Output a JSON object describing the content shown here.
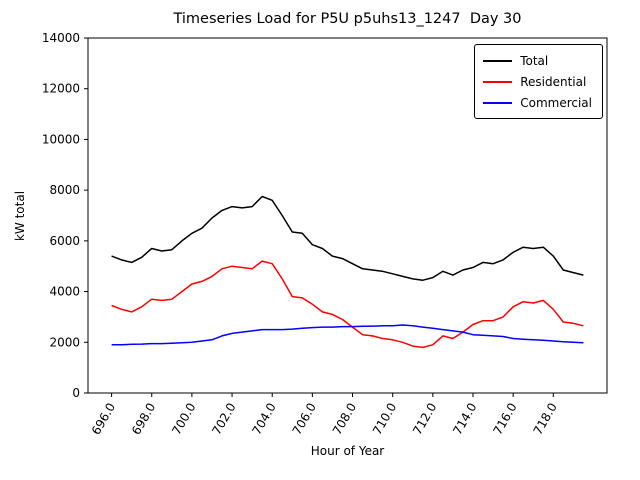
{
  "chart_data": {
    "type": "line",
    "title": "Timeseries Load for P5U p5uhs13_1247  Day 30",
    "xlabel": "Hour of Year",
    "ylabel": "kW total",
    "xlim": [
      694.825,
      720.675
    ],
    "ylim": [
      0,
      14000
    ],
    "xticks": [
      696,
      698,
      700,
      702,
      704,
      706,
      708,
      710,
      712,
      714,
      716,
      718
    ],
    "xtick_labels": [
      "696.0",
      "698.0",
      "700.0",
      "702.0",
      "704.0",
      "706.0",
      "708.0",
      "710.0",
      "712.0",
      "714.0",
      "716.0",
      "718.0"
    ],
    "yticks": [
      0,
      2000,
      4000,
      6000,
      8000,
      10000,
      12000,
      14000
    ],
    "grid": false,
    "legend_position": "upper right",
    "x": [
      696.0,
      696.5,
      697.0,
      697.5,
      698.0,
      698.5,
      699.0,
      699.5,
      700.0,
      700.5,
      701.0,
      701.5,
      702.0,
      702.5,
      703.0,
      703.5,
      704.0,
      704.5,
      705.0,
      705.5,
      706.0,
      706.5,
      707.0,
      707.5,
      708.0,
      708.5,
      709.0,
      709.5,
      710.0,
      710.5,
      711.0,
      711.5,
      712.0,
      712.5,
      713.0,
      713.5,
      714.0,
      714.5,
      715.0,
      715.5,
      716.0,
      716.5,
      717.0,
      717.5,
      718.0,
      718.5,
      719.0,
      719.5
    ],
    "series": [
      {
        "name": "Total",
        "color": "#000000",
        "values": [
          5400,
          5250,
          5150,
          5350,
          5700,
          5600,
          5650,
          6000,
          6300,
          6500,
          6900,
          7200,
          7350,
          7300,
          7350,
          7750,
          7600,
          7000,
          6350,
          6300,
          5850,
          5700,
          5400,
          5300,
          5100,
          4900,
          4850,
          4800,
          4700,
          4600,
          4500,
          4450,
          4550,
          4800,
          4650,
          4850,
          4950,
          5150,
          5100,
          5250,
          5550,
          5750,
          5700,
          5750,
          5400,
          4850,
          4750,
          4650
        ]
      },
      {
        "name": "Residential",
        "color": "#ff0000",
        "values": [
          3450,
          3300,
          3200,
          3400,
          3700,
          3650,
          3700,
          4000,
          4300,
          4400,
          4600,
          4900,
          5000,
          4950,
          4900,
          5200,
          5100,
          4500,
          3800,
          3750,
          3500,
          3200,
          3100,
          2900,
          2600,
          2300,
          2250,
          2150,
          2100,
          2000,
          1850,
          1800,
          1900,
          2250,
          2150,
          2400,
          2700,
          2850,
          2850,
          3000,
          3400,
          3600,
          3550,
          3650,
          3300,
          2800,
          2750,
          2650
        ]
      },
      {
        "name": "Commercial",
        "color": "#0000ff",
        "values": [
          1900,
          1900,
          1920,
          1930,
          1950,
          1950,
          1960,
          1980,
          2000,
          2050,
          2100,
          2250,
          2350,
          2400,
          2450,
          2500,
          2500,
          2500,
          2520,
          2550,
          2580,
          2600,
          2600,
          2620,
          2620,
          2630,
          2640,
          2650,
          2650,
          2680,
          2650,
          2600,
          2550,
          2500,
          2450,
          2400,
          2300,
          2280,
          2250,
          2230,
          2150,
          2120,
          2100,
          2080,
          2050,
          2020,
          2000,
          1980
        ]
      }
    ]
  }
}
